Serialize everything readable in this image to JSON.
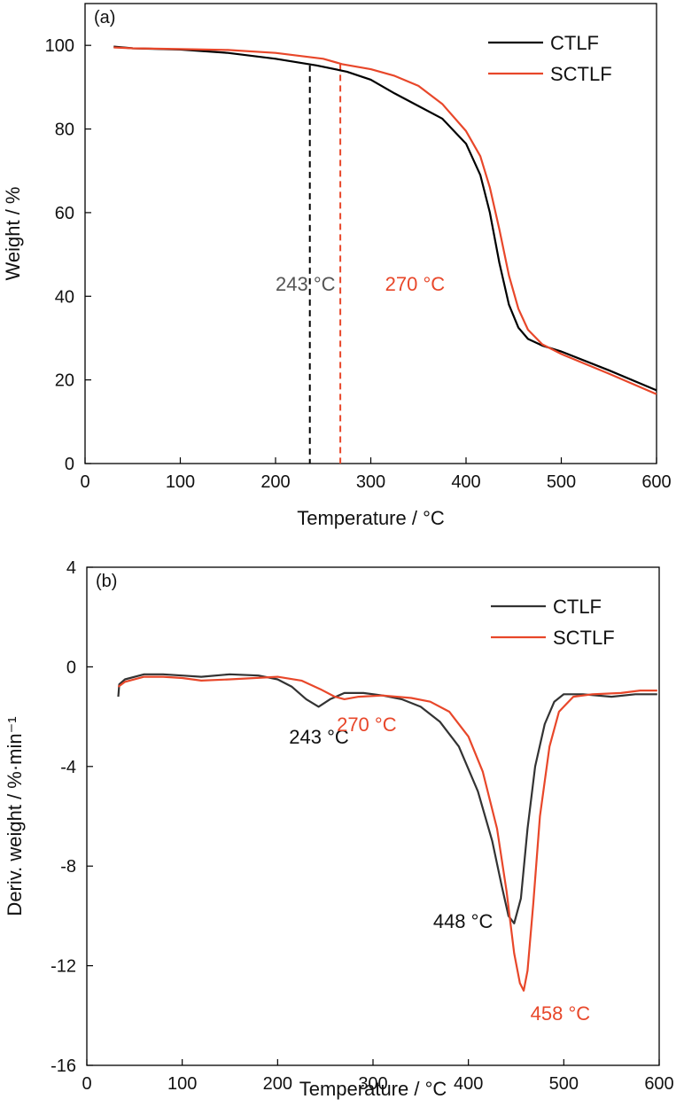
{
  "chart_data": [
    {
      "type": "line",
      "panel_label": "(a)",
      "xlabel": "Temperature / °C",
      "ylabel": "Weight / %",
      "xlim": [
        0,
        600
      ],
      "ylim": [
        0,
        110
      ],
      "xticks": [
        0,
        100,
        200,
        300,
        400,
        500,
        600
      ],
      "yticks": [
        0,
        20,
        40,
        60,
        80,
        100
      ],
      "grid": false,
      "legend_position": "top-right",
      "series": [
        {
          "name": "CTLF",
          "color": "#000000",
          "points": [
            [
              30,
              99.7
            ],
            [
              50,
              99.3
            ],
            [
              100,
              99.0
            ],
            [
              150,
              98.2
            ],
            [
              200,
              96.8
            ],
            [
              243,
              95.2
            ],
            [
              275,
              93.7
            ],
            [
              300,
              91.8
            ],
            [
              325,
              88.5
            ],
            [
              350,
              85.5
            ],
            [
              375,
              82.5
            ],
            [
              400,
              76.5
            ],
            [
              415,
              69.0
            ],
            [
              425,
              60.0
            ],
            [
              435,
              48.0
            ],
            [
              445,
              38.0
            ],
            [
              455,
              32.5
            ],
            [
              465,
              29.8
            ],
            [
              480,
              28.2
            ],
            [
              500,
              26.8
            ],
            [
              550,
              22.3
            ],
            [
              600,
              17.5
            ]
          ]
        },
        {
          "name": "SCTLF",
          "color": "#e8472a",
          "points": [
            [
              30,
              99.5
            ],
            [
              50,
              99.3
            ],
            [
              100,
              99.1
            ],
            [
              150,
              98.9
            ],
            [
              200,
              98.2
            ],
            [
              250,
              96.8
            ],
            [
              270,
              95.5
            ],
            [
              300,
              94.3
            ],
            [
              325,
              92.7
            ],
            [
              350,
              90.3
            ],
            [
              375,
              86.0
            ],
            [
              400,
              79.5
            ],
            [
              415,
              73.5
            ],
            [
              425,
              66.0
            ],
            [
              435,
              56.0
            ],
            [
              445,
              45.0
            ],
            [
              455,
              37.0
            ],
            [
              465,
              32.0
            ],
            [
              480,
              28.5
            ],
            [
              500,
              26.2
            ],
            [
              550,
              21.5
            ],
            [
              600,
              16.6
            ]
          ]
        }
      ],
      "annotations": [
        {
          "label": "243 °C",
          "x": 236,
          "color": "#555555",
          "line_color": "#000000",
          "text_x": 200,
          "text_y": 43
        },
        {
          "label": "270 °C",
          "x": 268,
          "color": "#e8472a",
          "line_color": "#e8472a",
          "text_x": 315,
          "text_y": 43
        }
      ]
    },
    {
      "type": "line",
      "panel_label": "(b)",
      "xlabel": "Temperature / °C",
      "ylabel": "Deriv. weight / %·min⁻¹",
      "xlim": [
        0,
        600
      ],
      "ylim": [
        -16,
        4
      ],
      "xticks": [
        0,
        100,
        200,
        300,
        400,
        500,
        600
      ],
      "yticks": [
        4,
        0,
        -4,
        -8,
        -12,
        -16
      ],
      "grid": false,
      "legend_position": "top-right",
      "series": [
        {
          "name": "CTLF",
          "color": "#333333",
          "points": [
            [
              33,
              -1.2
            ],
            [
              34,
              -0.7
            ],
            [
              40,
              -0.5
            ],
            [
              60,
              -0.3
            ],
            [
              80,
              -0.3
            ],
            [
              100,
              -0.35
            ],
            [
              120,
              -0.4
            ],
            [
              150,
              -0.3
            ],
            [
              180,
              -0.35
            ],
            [
              200,
              -0.5
            ],
            [
              215,
              -0.8
            ],
            [
              230,
              -1.3
            ],
            [
              243,
              -1.6
            ],
            [
              255,
              -1.3
            ],
            [
              270,
              -1.05
            ],
            [
              290,
              -1.05
            ],
            [
              310,
              -1.15
            ],
            [
              330,
              -1.3
            ],
            [
              350,
              -1.6
            ],
            [
              370,
              -2.2
            ],
            [
              390,
              -3.2
            ],
            [
              410,
              -5.0
            ],
            [
              425,
              -7.0
            ],
            [
              435,
              -8.8
            ],
            [
              442,
              -10.0
            ],
            [
              448,
              -10.3
            ],
            [
              455,
              -9.3
            ],
            [
              462,
              -6.5
            ],
            [
              470,
              -4.0
            ],
            [
              480,
              -2.3
            ],
            [
              490,
              -1.4
            ],
            [
              500,
              -1.1
            ],
            [
              520,
              -1.1
            ],
            [
              550,
              -1.2
            ],
            [
              575,
              -1.1
            ],
            [
              598,
              -1.1
            ]
          ]
        },
        {
          "name": "SCTLF",
          "color": "#e8472a",
          "points": [
            [
              33,
              -0.8
            ],
            [
              40,
              -0.6
            ],
            [
              60,
              -0.4
            ],
            [
              80,
              -0.4
            ],
            [
              100,
              -0.45
            ],
            [
              120,
              -0.55
            ],
            [
              150,
              -0.5
            ],
            [
              200,
              -0.4
            ],
            [
              225,
              -0.55
            ],
            [
              245,
              -0.9
            ],
            [
              260,
              -1.2
            ],
            [
              270,
              -1.3
            ],
            [
              285,
              -1.2
            ],
            [
              310,
              -1.15
            ],
            [
              340,
              -1.25
            ],
            [
              360,
              -1.4
            ],
            [
              380,
              -1.8
            ],
            [
              400,
              -2.8
            ],
            [
              415,
              -4.2
            ],
            [
              430,
              -6.5
            ],
            [
              440,
              -9.0
            ],
            [
              448,
              -11.5
            ],
            [
              454,
              -12.7
            ],
            [
              458,
              -13.0
            ],
            [
              462,
              -12.2
            ],
            [
              468,
              -9.5
            ],
            [
              475,
              -6.0
            ],
            [
              485,
              -3.2
            ],
            [
              495,
              -1.8
            ],
            [
              510,
              -1.2
            ],
            [
              530,
              -1.1
            ],
            [
              560,
              -1.05
            ],
            [
              580,
              -0.95
            ],
            [
              598,
              -0.95
            ]
          ]
        }
      ],
      "annotations": [
        {
          "label": "243 °C",
          "color": "#111111",
          "text_x": 212,
          "text_y": -2.8
        },
        {
          "label": "270 °C",
          "color": "#e8472a",
          "text_x": 262,
          "text_y": -2.3
        },
        {
          "label": "448 °C",
          "color": "#111111",
          "text_x": 363,
          "text_y": -10.2
        },
        {
          "label": "458 °C",
          "color": "#e8472a",
          "text_x": 465,
          "text_y": -13.9
        }
      ]
    }
  ]
}
